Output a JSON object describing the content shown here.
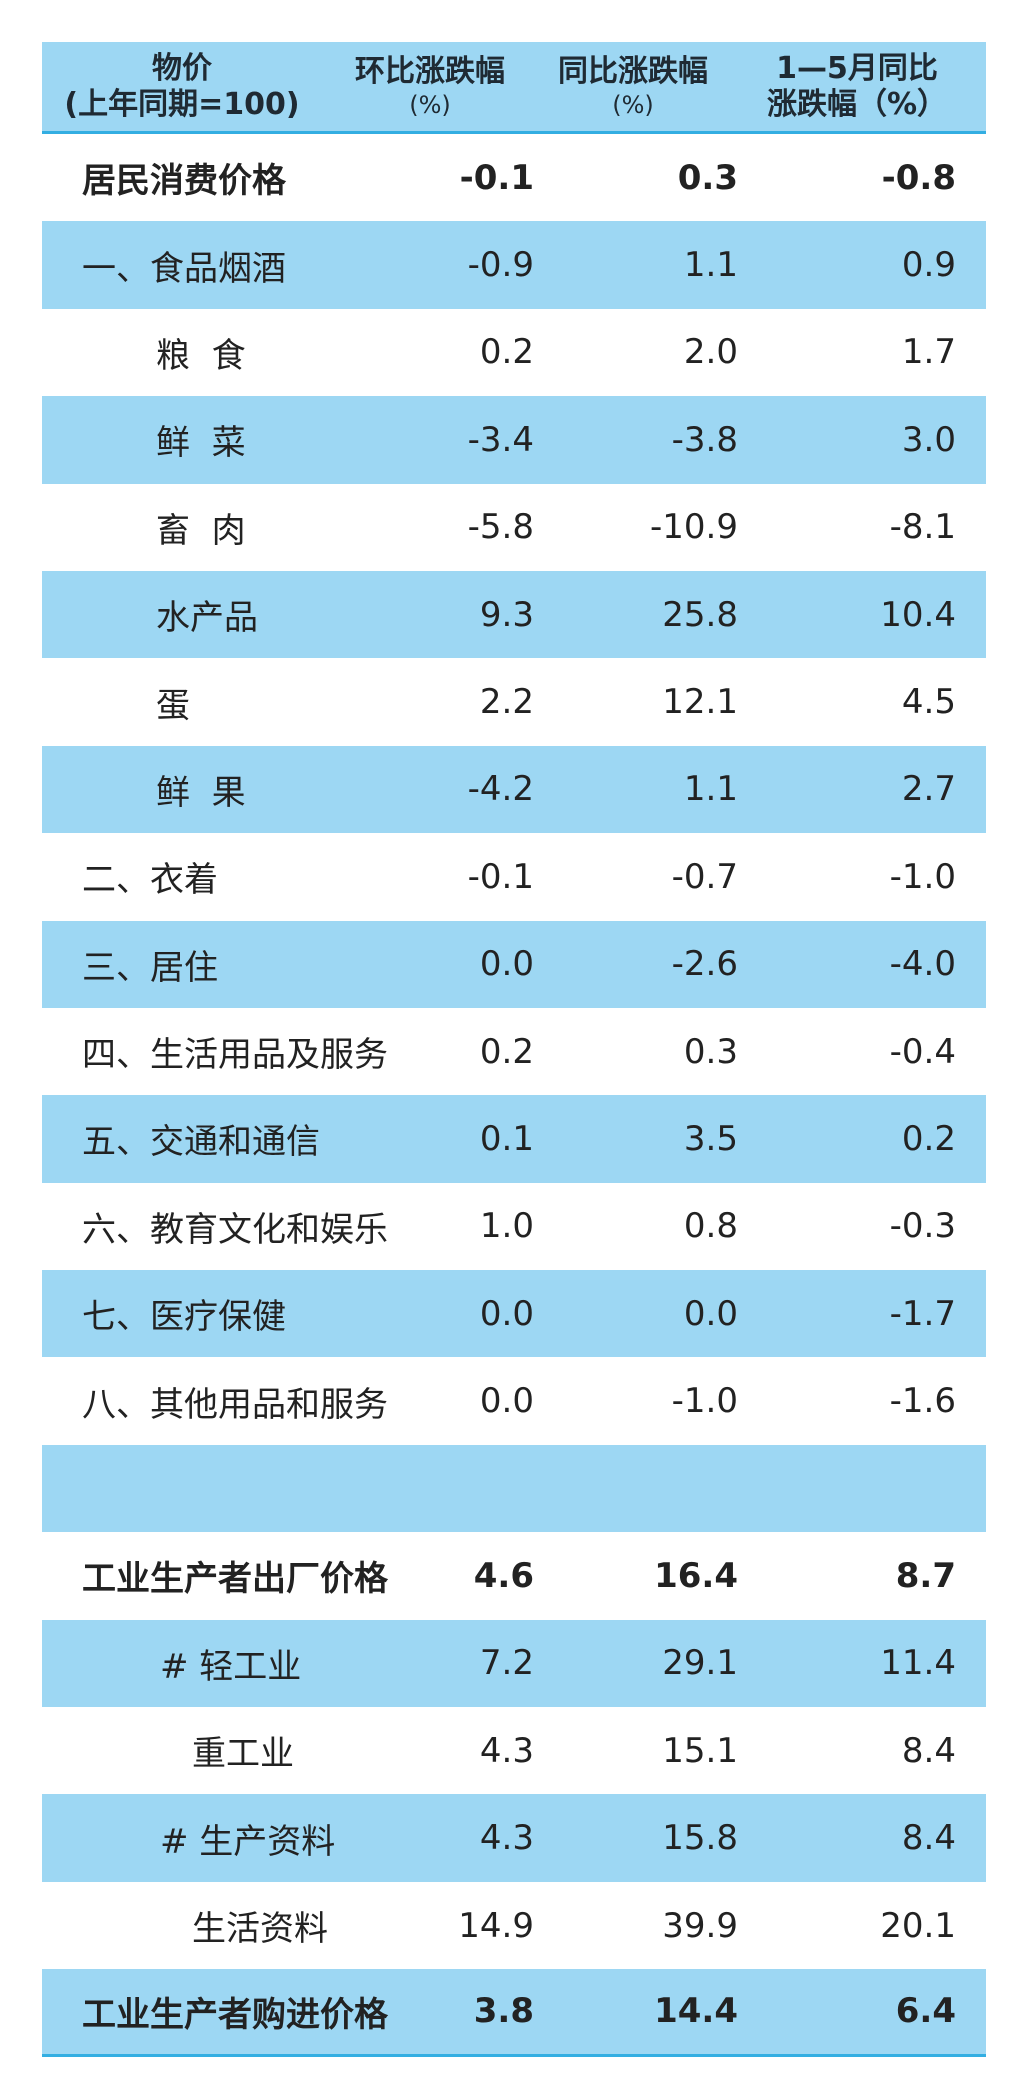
{
  "header": {
    "col_name": "物价",
    "col_name_sub": "(上年同期=100)",
    "col_mom": "环比涨跌幅",
    "col_mom_unit": "(%)",
    "col_yoy": "同比涨跌幅",
    "col_yoy_unit": "(%)",
    "col_cum": "1—5月同比",
    "col_cum_sub": "涨跌幅（%）"
  },
  "rows": [
    {
      "name": "居民消费价格",
      "mom": "-0.1",
      "yoy": "0.3",
      "cum": "-0.8"
    },
    {
      "name": "一、食品烟酒",
      "mom": "-0.9",
      "yoy": "1.1",
      "cum": "0.9"
    },
    {
      "name": "粮  食",
      "mom": "0.2",
      "yoy": "2.0",
      "cum": "1.7"
    },
    {
      "name": "鲜  菜",
      "mom": "-3.4",
      "yoy": "-3.8",
      "cum": "3.0"
    },
    {
      "name": "畜  肉",
      "mom": "-5.8",
      "yoy": "-10.9",
      "cum": "-8.1"
    },
    {
      "name": "水产品",
      "mom": "9.3",
      "yoy": "25.8",
      "cum": "10.4"
    },
    {
      "name": "蛋",
      "mom": "2.2",
      "yoy": "12.1",
      "cum": "4.5"
    },
    {
      "name": "鲜  果",
      "mom": "-4.2",
      "yoy": "1.1",
      "cum": "2.7"
    },
    {
      "name": "二、衣着",
      "mom": "-0.1",
      "yoy": "-0.7",
      "cum": "-1.0"
    },
    {
      "name": "三、居住",
      "mom": "0.0",
      "yoy": "-2.6",
      "cum": "-4.0"
    },
    {
      "name": "四、生活用品及服务",
      "mom": "0.2",
      "yoy": "0.3",
      "cum": "-0.4"
    },
    {
      "name": "五、交通和通信",
      "mom": "0.1",
      "yoy": "3.5",
      "cum": "0.2"
    },
    {
      "name": "六、教育文化和娱乐",
      "mom": "1.0",
      "yoy": "0.8",
      "cum": "-0.3"
    },
    {
      "name": "七、医疗保健",
      "mom": "0.0",
      "yoy": "0.0",
      "cum": "-1.7"
    },
    {
      "name": "八、其他用品和服务",
      "mom": "0.0",
      "yoy": "-1.0",
      "cum": "-1.6"
    },
    {
      "name": "",
      "mom": "",
      "yoy": "",
      "cum": ""
    },
    {
      "name": "工业生产者出厂价格",
      "mom": "4.6",
      "yoy": "16.4",
      "cum": "8.7"
    },
    {
      "name": "# 轻工业",
      "mom": "7.2",
      "yoy": "29.1",
      "cum": "11.4"
    },
    {
      "name": "重工业",
      "mom": "4.3",
      "yoy": "15.1",
      "cum": "8.4"
    },
    {
      "name": "# 生产资料",
      "mom": "4.3",
      "yoy": "15.8",
      "cum": "8.4"
    },
    {
      "name": "生活资料",
      "mom": "14.9",
      "yoy": "39.9",
      "cum": "20.1"
    },
    {
      "name": "工业生产者购进价格",
      "mom": "3.8",
      "yoy": "14.4",
      "cum": "6.4"
    }
  ]
}
